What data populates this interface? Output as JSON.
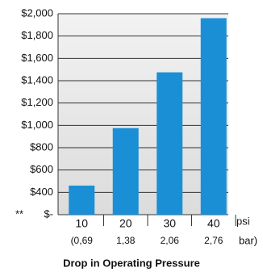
{
  "chart_data": {
    "type": "bar",
    "title": "Drop in Operating Pressure",
    "categories": [
      "10",
      "20",
      "30",
      "40"
    ],
    "sublabels": [
      "(0,69",
      "1,38",
      "2,06",
      "2,76"
    ],
    "unit_label": "psi",
    "sub_unit_label": "bar)",
    "axis_note": "**",
    "values": [
      460,
      975,
      1475,
      1960
    ],
    "color": "#1a8fd6",
    "ylim": [
      200,
      2000
    ],
    "yticks": [
      {
        "value": 200,
        "label": "$-"
      },
      {
        "value": 400,
        "label": "$400"
      },
      {
        "value": 600,
        "label": "$600"
      },
      {
        "value": 800,
        "label": "$800"
      },
      {
        "value": 1000,
        "label": "$1,000"
      },
      {
        "value": 1200,
        "label": "$1,200"
      },
      {
        "value": 1400,
        "label": "$1,400"
      },
      {
        "value": 1600,
        "label": "$1,600"
      },
      {
        "value": 1800,
        "label": "$1,800"
      },
      {
        "value": 2000,
        "label": "$2,000"
      }
    ],
    "grid": true
  }
}
